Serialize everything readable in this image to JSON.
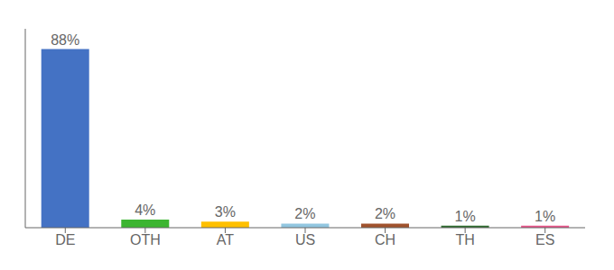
{
  "chart_data": {
    "type": "bar",
    "categories": [
      "DE",
      "OTH",
      "AT",
      "US",
      "CH",
      "TH",
      "ES"
    ],
    "values": [
      88,
      4,
      3,
      2,
      2,
      1,
      1
    ],
    "value_labels": [
      "88%",
      "4%",
      "3%",
      "2%",
      "2%",
      "1%",
      "1%"
    ],
    "colors": [
      "#4472C4",
      "#3CB531",
      "#FFC000",
      "#92C6E0",
      "#A0522D",
      "#2E6B2E",
      "#E8558A"
    ],
    "ylim": [
      0,
      98
    ],
    "tick_labels": "x",
    "data_labels": true,
    "grid": false
  }
}
